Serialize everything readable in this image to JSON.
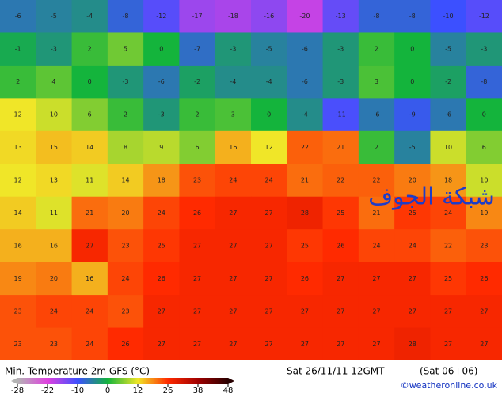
{
  "map": {
    "title": "Min. Temperature 2m GFS (°C)",
    "valid_time": "Sat 26/11/11 12GMT",
    "run_info": "(Sat 06+06)",
    "credit": "©weatheronline.co.uk",
    "watermark": "شبكة الجوف",
    "colorbar": {
      "ticks": [
        -28,
        -22,
        -10,
        0,
        12,
        26,
        38,
        48
      ],
      "colors": [
        "#b4b4b4",
        "#e040e0",
        "#3c50ff",
        "#14b43c",
        "#f0e628",
        "#ff2a00",
        "#a00000",
        "#280000"
      ]
    },
    "grid": [
      [
        -6,
        -5,
        -4,
        -8,
        -12,
        -17,
        -18,
        -16,
        -20,
        -13,
        -8,
        -8,
        -10,
        -12
      ],
      [
        -1,
        -3,
        2,
        5,
        0,
        -7,
        -3,
        -5,
        -6,
        -3,
        2,
        0,
        -5,
        -3
      ],
      [
        2,
        4,
        0,
        -3,
        -6,
        -2,
        -4,
        -4,
        -6,
        -3,
        3,
        0,
        -2,
        -8
      ],
      [
        12,
        10,
        6,
        2,
        -3,
        2,
        3,
        0,
        -4,
        -11,
        -6,
        -9,
        -6,
        0
      ],
      [
        13,
        15,
        14,
        8,
        9,
        6,
        16,
        12,
        22,
        21,
        2,
        -5,
        10,
        6
      ],
      [
        12,
        13,
        11,
        14,
        18,
        23,
        24,
        24,
        21,
        22,
        22,
        20,
        18,
        10
      ],
      [
        14,
        11,
        21,
        20,
        24,
        26,
        27,
        27,
        28,
        25,
        21,
        25,
        24,
        19
      ],
      [
        16,
        16,
        27,
        23,
        25,
        27,
        27,
        27,
        25,
        26,
        24,
        24,
        22,
        23
      ],
      [
        19,
        20,
        16,
        24,
        26,
        27,
        27,
        27,
        26,
        27,
        27,
        27,
        25,
        26
      ],
      [
        23,
        24,
        24,
        23,
        27,
        27,
        27,
        27,
        27,
        27,
        27,
        27,
        27,
        27
      ],
      [
        23,
        23,
        24,
        26,
        27,
        27,
        27,
        27,
        27,
        27,
        27,
        28,
        27,
        27
      ]
    ]
  }
}
